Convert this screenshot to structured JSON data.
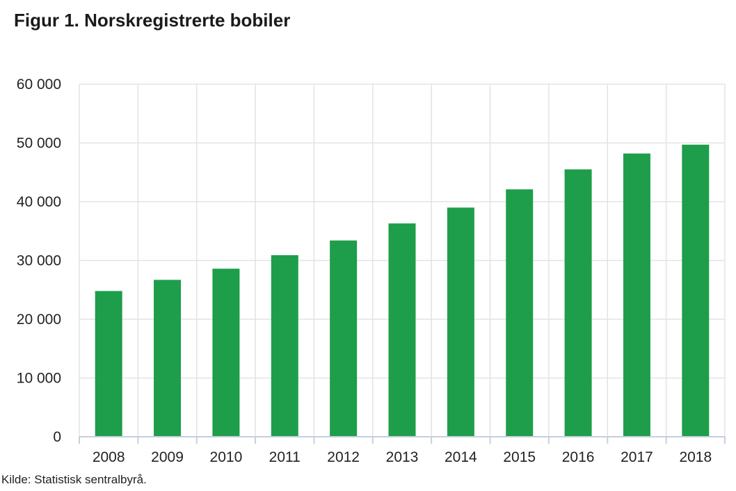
{
  "title": "Figur 1. Norskregistrerte bobiler",
  "source": "Kilde: Statistisk sentralbyrå.",
  "chart_data": {
    "type": "bar",
    "title": "Figur 1. Norskregistrerte bobiler",
    "xlabel": "",
    "ylabel": "",
    "categories": [
      "2008",
      "2009",
      "2010",
      "2011",
      "2012",
      "2013",
      "2014",
      "2015",
      "2016",
      "2017",
      "2018"
    ],
    "values": [
      24800,
      26700,
      28600,
      30900,
      33400,
      36300,
      39000,
      42100,
      45500,
      48200,
      49700
    ],
    "ylim": [
      0,
      60000
    ],
    "yticks": [
      0,
      10000,
      20000,
      30000,
      40000,
      50000,
      60000
    ],
    "ytick_labels": [
      "0",
      "10 000",
      "20 000",
      "30 000",
      "40 000",
      "50 000",
      "60 000"
    ],
    "grid": true,
    "bar_color": "#1e9e4a",
    "grid_color": "#e3e3e3",
    "axis_color": "#c4d0de"
  }
}
